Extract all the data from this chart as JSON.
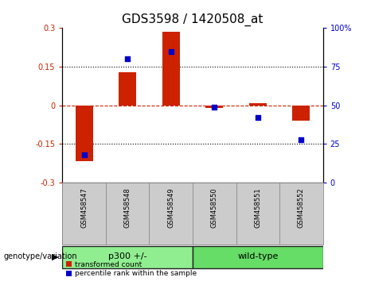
{
  "title": "GDS3598 / 1420508_at",
  "samples": [
    "GSM458547",
    "GSM458548",
    "GSM458549",
    "GSM458550",
    "GSM458551",
    "GSM458552"
  ],
  "bar_values": [
    -0.215,
    0.13,
    0.285,
    -0.01,
    0.01,
    -0.06
  ],
  "percentile_values": [
    18,
    80,
    85,
    49,
    42,
    28
  ],
  "ylim_left": [
    -0.3,
    0.3
  ],
  "ylim_right": [
    0,
    100
  ],
  "yticks_left": [
    -0.3,
    -0.15,
    0,
    0.15,
    0.3
  ],
  "yticks_right": [
    0,
    25,
    50,
    75,
    100
  ],
  "bar_color": "#cc2200",
  "scatter_color": "#0000cc",
  "hline_color": "#cc2200",
  "groups": [
    {
      "label": "p300 +/-",
      "indices": [
        0,
        1,
        2
      ],
      "color": "#90ee90"
    },
    {
      "label": "wild-type",
      "indices": [
        3,
        4,
        5
      ],
      "color": "#66dd66"
    }
  ],
  "group_label": "genotype/variation",
  "legend_items": [
    "transformed count",
    "percentile rank within the sample"
  ],
  "background_color": "#ffffff",
  "bar_color_legend": "#cc2200",
  "scatter_color_legend": "#0000cc",
  "tick_label_fontsize": 7,
  "title_fontsize": 11,
  "dotted_hlines": [
    -0.15,
    0.15
  ],
  "xlabel_bg": "#cccccc",
  "xlabel_border": "#888888",
  "group_border": "#222222"
}
